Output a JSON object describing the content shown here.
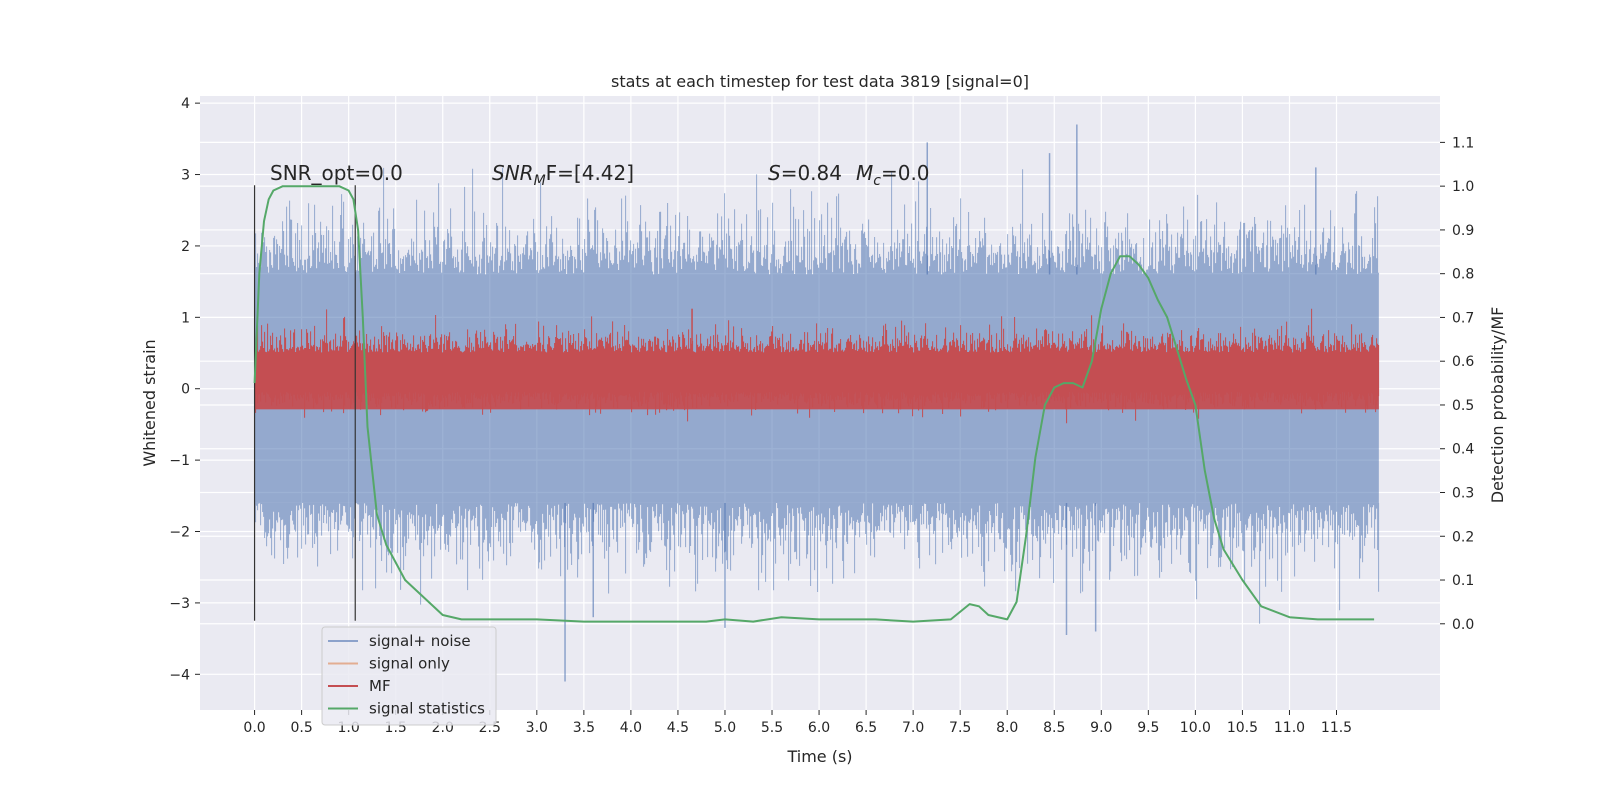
{
  "chart_data": {
    "type": "line",
    "title": "stats at each timestep for test data 3819 [signal=0]",
    "xlabel": "Time (s)",
    "ylabel": "Whitened strain",
    "y2label": "Detection probability/MF",
    "xlim": [
      -0.58,
      12.6
    ],
    "ylim": [
      -4.5,
      4.1
    ],
    "y2lim": [
      -0.197,
      1.206
    ],
    "xticks": [
      0.0,
      0.5,
      1.0,
      1.5,
      2.0,
      2.5,
      3.0,
      3.5,
      4.0,
      4.5,
      5.0,
      5.5,
      6.0,
      6.5,
      7.0,
      7.5,
      8.0,
      8.5,
      9.0,
      9.5,
      10.0,
      10.5,
      11.0,
      11.5
    ],
    "xtick_labels": [
      "0.0",
      "0.5",
      "1.0",
      "1.5",
      "2.0",
      "2.5",
      "3.0",
      "3.5",
      "4.0",
      "4.5",
      "5.0",
      "5.5",
      "6.0",
      "6.5",
      "7.0",
      "7.5",
      "8.0",
      "8.5",
      "9.0",
      "9.5",
      "10.0",
      "10.5",
      "11.0",
      "11.5"
    ],
    "yticks": [
      4,
      3,
      2,
      1,
      0,
      -1,
      -2,
      -3,
      -4
    ],
    "ytick_labels": [
      "4",
      "3",
      "2",
      "1",
      "0",
      "−1",
      "−2",
      "−3",
      "−4"
    ],
    "y2ticks": [
      1.1,
      1.0,
      0.9,
      0.8,
      0.7,
      0.6,
      0.5,
      0.4,
      0.3,
      0.2,
      0.1,
      0.0
    ],
    "y2tick_labels": [
      "1.1",
      "1.0",
      "0.9",
      "0.8",
      "0.7",
      "0.6",
      "0.5",
      "0.4",
      "0.3",
      "0.2",
      "0.1",
      "0.0"
    ],
    "grid": true,
    "legend_position": "bottom-left",
    "annotations": {
      "snr_opt": "SNR_opt=0.0",
      "snr_mf_label": "SNR",
      "snr_mf_sub": "M",
      "snr_mf_rest": "F=[4.42]",
      "s_label": "S",
      "s_value": "=0.84",
      "mc_label": "M",
      "mc_sub": "c",
      "mc_value": "=0.0"
    },
    "vertical_lines": [
      0.0,
      1.07
    ],
    "noise_envelope": {
      "t_start": 0.0,
      "t_end": 11.95,
      "band_upper": 1.6,
      "band_lower": -1.6,
      "typical_peak": 2.3,
      "max_peak": 3.7,
      "min_trough": -4.1
    },
    "series": [
      {
        "name": "signal+ noise",
        "color": "#4c72b0",
        "axis": "left",
        "style": "dense noise envelope"
      },
      {
        "name": "signal only",
        "color": "#dd8452",
        "axis": "left",
        "style": "line"
      },
      {
        "name": "MF",
        "color": "#c44e52",
        "axis": "right",
        "style": "dense band",
        "band": [
          0.53,
          0.62
        ],
        "peak": 0.72
      },
      {
        "name": "signal statistics",
        "color": "#55a868",
        "axis": "right",
        "x": [
          0.0,
          0.05,
          0.1,
          0.15,
          0.2,
          0.3,
          0.5,
          0.8,
          0.9,
          1.0,
          1.05,
          1.1,
          1.15,
          1.2,
          1.3,
          1.4,
          1.5,
          1.6,
          1.8,
          2.0,
          2.2,
          2.5,
          3.0,
          3.5,
          4.0,
          4.5,
          4.8,
          5.0,
          5.3,
          5.6,
          6.0,
          6.3,
          6.6,
          7.0,
          7.4,
          7.6,
          7.7,
          7.8,
          8.0,
          8.1,
          8.2,
          8.3,
          8.4,
          8.5,
          8.6,
          8.7,
          8.8,
          8.9,
          9.0,
          9.1,
          9.2,
          9.3,
          9.4,
          9.5,
          9.6,
          9.7,
          9.8,
          9.9,
          10.0,
          10.1,
          10.2,
          10.3,
          10.5,
          10.7,
          11.0,
          11.3,
          11.6,
          11.9
        ],
        "values": [
          0.55,
          0.8,
          0.92,
          0.97,
          0.99,
          1.0,
          1.0,
          1.0,
          1.0,
          0.99,
          0.97,
          0.9,
          0.7,
          0.45,
          0.25,
          0.18,
          0.14,
          0.1,
          0.06,
          0.02,
          0.01,
          0.01,
          0.01,
          0.005,
          0.005,
          0.005,
          0.005,
          0.01,
          0.005,
          0.015,
          0.01,
          0.01,
          0.01,
          0.005,
          0.01,
          0.045,
          0.04,
          0.02,
          0.01,
          0.05,
          0.2,
          0.38,
          0.5,
          0.54,
          0.55,
          0.55,
          0.54,
          0.6,
          0.72,
          0.8,
          0.84,
          0.84,
          0.82,
          0.79,
          0.74,
          0.7,
          0.63,
          0.56,
          0.5,
          0.35,
          0.24,
          0.17,
          0.1,
          0.04,
          0.015,
          0.01,
          0.01,
          0.01
        ]
      }
    ]
  }
}
